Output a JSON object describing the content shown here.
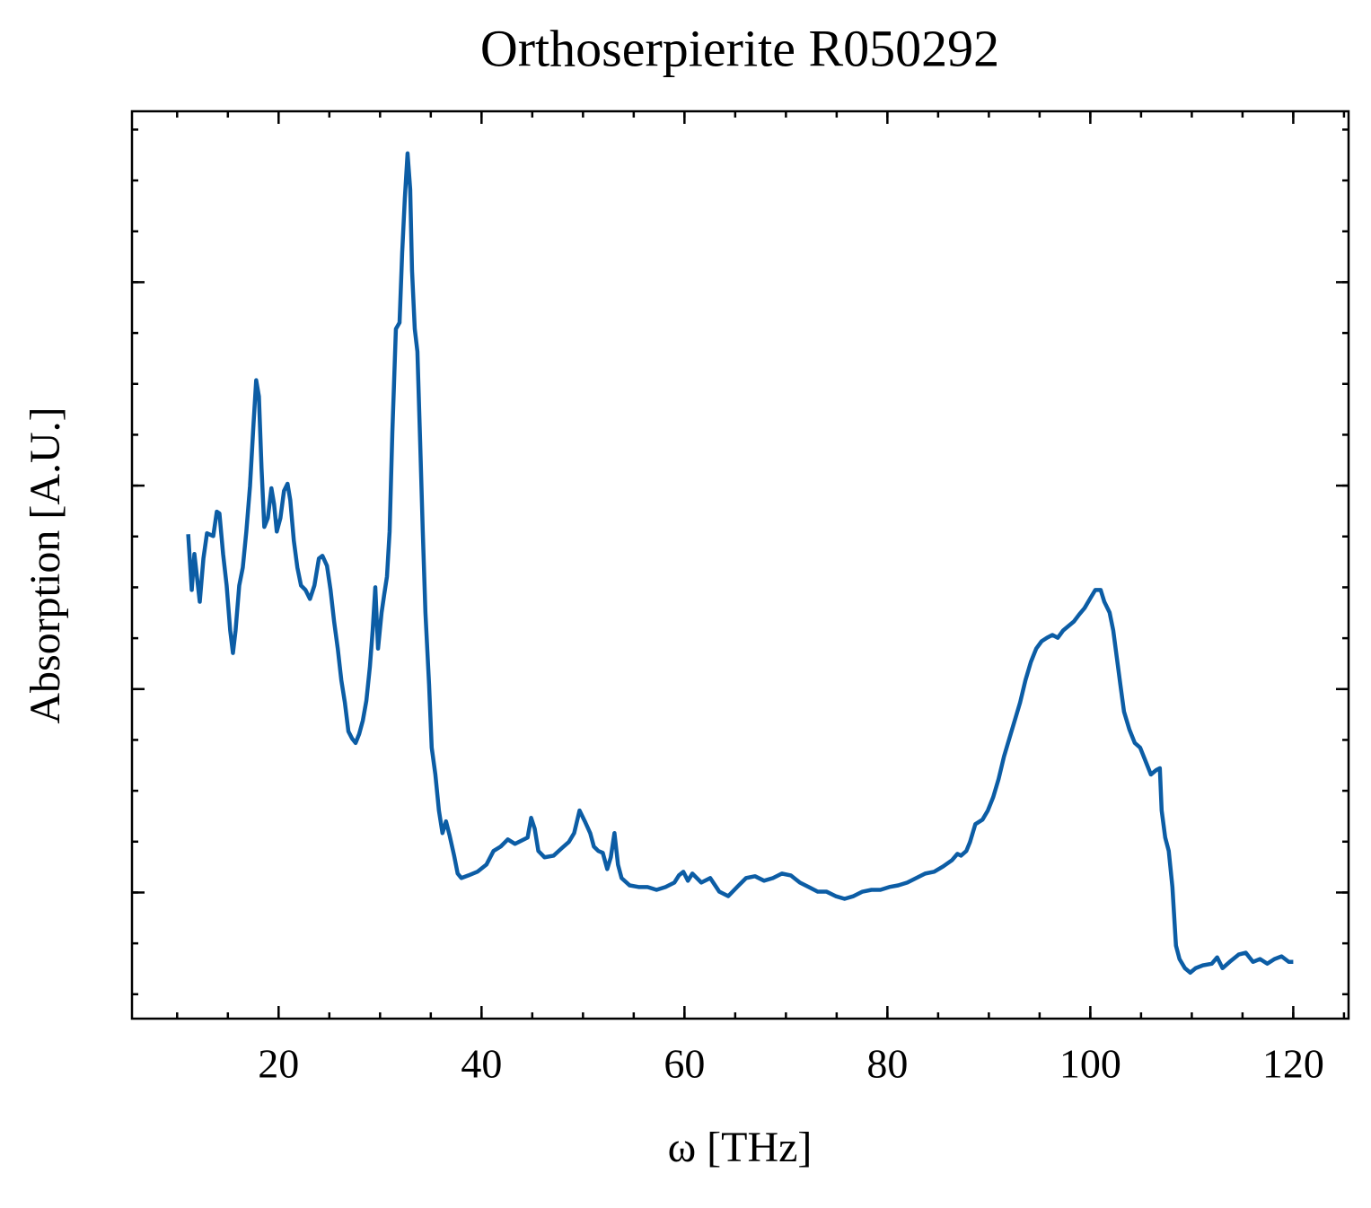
{
  "chart_data": {
    "type": "line",
    "title": "Orthoserpierite R050292",
    "xlabel": "ω [THz]",
    "ylabel": "Absorption [A.U.]",
    "color": "#0C5DA5",
    "xlim": [
      5.55,
      125.45
    ],
    "xticks": [
      20,
      40,
      60,
      80,
      100,
      120
    ],
    "xminor_step": 5,
    "ylim": [
      -0.62,
      3.84
    ],
    "yticks": [
      0,
      1,
      2,
      3
    ],
    "yminor_step": 0.25,
    "ytick_labels": false,
    "x": [
      11.09,
      11.44,
      11.7,
      12.23,
      12.59,
      12.94,
      13.56,
      13.91,
      14.17,
      14.53,
      14.88,
      15.23,
      15.5,
      15.76,
      16.12,
      16.47,
      16.82,
      17.18,
      17.53,
      17.79,
      18.06,
      18.32,
      18.59,
      18.94,
      19.29,
      19.56,
      19.82,
      20.18,
      20.53,
      20.88,
      21.15,
      21.5,
      21.85,
      22.21,
      22.65,
      23.09,
      23.53,
      23.97,
      24.32,
      24.77,
      25.12,
      25.47,
      25.83,
      26.18,
      26.53,
      26.88,
      27.24,
      27.59,
      27.94,
      28.3,
      28.65,
      29.0,
      29.27,
      29.53,
      29.8,
      30.15,
      30.41,
      30.68,
      30.94,
      31.21,
      31.56,
      31.92,
      32.18,
      32.44,
      32.71,
      32.97,
      33.15,
      33.42,
      33.68,
      33.95,
      34.21,
      34.47,
      34.83,
      35.09,
      35.45,
      35.8,
      36.15,
      36.5,
      36.86,
      37.3,
      37.65,
      38.01,
      38.71,
      39.59,
      40.48,
      41.18,
      41.89,
      42.59,
      43.3,
      44.01,
      44.54,
      44.89,
      45.24,
      45.6,
      46.21,
      47.1,
      47.89,
      48.6,
      49.13,
      49.66,
      50.18,
      50.71,
      51.07,
      51.51,
      51.95,
      52.39,
      52.74,
      53.1,
      53.45,
      53.8,
      54.6,
      55.48,
      56.36,
      57.25,
      58.13,
      59.01,
      59.45,
      59.89,
      60.34,
      60.78,
      61.66,
      62.54,
      63.43,
      64.31,
      65.19,
      66.07,
      66.95,
      67.84,
      68.72,
      69.6,
      70.48,
      71.37,
      72.25,
      73.13,
      74.01,
      74.9,
      75.78,
      76.66,
      77.54,
      78.43,
      79.31,
      80.19,
      81.07,
      81.96,
      82.84,
      83.72,
      84.61,
      85.49,
      86.37,
      86.9,
      87.25,
      87.78,
      88.14,
      88.67,
      89.37,
      89.9,
      90.43,
      90.96,
      91.49,
      92.02,
      92.55,
      93.08,
      93.61,
      94.14,
      94.67,
      95.2,
      95.73,
      96.26,
      96.79,
      97.32,
      97.85,
      98.38,
      98.91,
      99.43,
      99.96,
      100.49,
      101.02,
      101.38,
      101.9,
      102.26,
      102.61,
      102.96,
      103.32,
      103.85,
      104.38,
      104.91,
      105.44,
      105.97,
      106.5,
      106.85,
      107.03,
      107.38,
      107.73,
      108.09,
      108.44,
      108.79,
      109.32,
      109.85,
      110.38,
      111.09,
      111.97,
      112.5,
      113.03,
      113.73,
      114.62,
      115.32,
      116.03,
      116.73,
      117.44,
      118.15,
      118.85,
      119.56,
      120.0
    ],
    "values": [
      1.761,
      1.487,
      1.664,
      1.429,
      1.642,
      1.766,
      1.752,
      1.872,
      1.863,
      1.664,
      1.509,
      1.288,
      1.177,
      1.288,
      1.509,
      1.597,
      1.774,
      1.996,
      2.305,
      2.518,
      2.438,
      2.084,
      1.797,
      1.841,
      1.987,
      1.907,
      1.774,
      1.841,
      1.974,
      2.009,
      1.929,
      1.73,
      1.597,
      1.509,
      1.487,
      1.443,
      1.509,
      1.642,
      1.655,
      1.606,
      1.487,
      1.332,
      1.199,
      1.044,
      0.934,
      0.792,
      0.757,
      0.735,
      0.779,
      0.845,
      0.943,
      1.111,
      1.288,
      1.5,
      1.199,
      1.376,
      1.465,
      1.553,
      1.774,
      2.261,
      2.77,
      2.801,
      3.146,
      3.412,
      3.633,
      3.456,
      3.058,
      2.77,
      2.659,
      2.217,
      1.774,
      1.376,
      1.022,
      0.712,
      0.58,
      0.403,
      0.292,
      0.35,
      0.279,
      0.181,
      0.093,
      0.071,
      0.084,
      0.102,
      0.137,
      0.204,
      0.226,
      0.261,
      0.239,
      0.257,
      0.27,
      0.367,
      0.314,
      0.204,
      0.173,
      0.181,
      0.217,
      0.248,
      0.292,
      0.403,
      0.35,
      0.292,
      0.226,
      0.204,
      0.195,
      0.115,
      0.173,
      0.292,
      0.137,
      0.071,
      0.035,
      0.027,
      0.027,
      0.013,
      0.027,
      0.049,
      0.084,
      0.102,
      0.058,
      0.093,
      0.049,
      0.071,
      0.004,
      -0.018,
      0.027,
      0.071,
      0.08,
      0.058,
      0.071,
      0.093,
      0.084,
      0.049,
      0.027,
      0.004,
      0.004,
      -0.018,
      -0.031,
      -0.018,
      0.004,
      0.013,
      0.013,
      0.027,
      0.035,
      0.049,
      0.071,
      0.093,
      0.102,
      0.128,
      0.159,
      0.19,
      0.181,
      0.204,
      0.248,
      0.336,
      0.358,
      0.403,
      0.469,
      0.558,
      0.668,
      0.757,
      0.845,
      0.934,
      1.044,
      1.133,
      1.199,
      1.235,
      1.252,
      1.266,
      1.252,
      1.288,
      1.31,
      1.332,
      1.367,
      1.398,
      1.443,
      1.487,
      1.487,
      1.429,
      1.376,
      1.288,
      1.155,
      1.022,
      0.889,
      0.801,
      0.735,
      0.712,
      0.646,
      0.58,
      0.602,
      0.611,
      0.403,
      0.27,
      0.204,
      0.027,
      -0.261,
      -0.327,
      -0.372,
      -0.394,
      -0.372,
      -0.358,
      -0.35,
      -0.319,
      -0.372,
      -0.341,
      -0.305,
      -0.296,
      -0.341,
      -0.327,
      -0.35,
      -0.327,
      -0.314,
      -0.341,
      -0.341
    ]
  }
}
